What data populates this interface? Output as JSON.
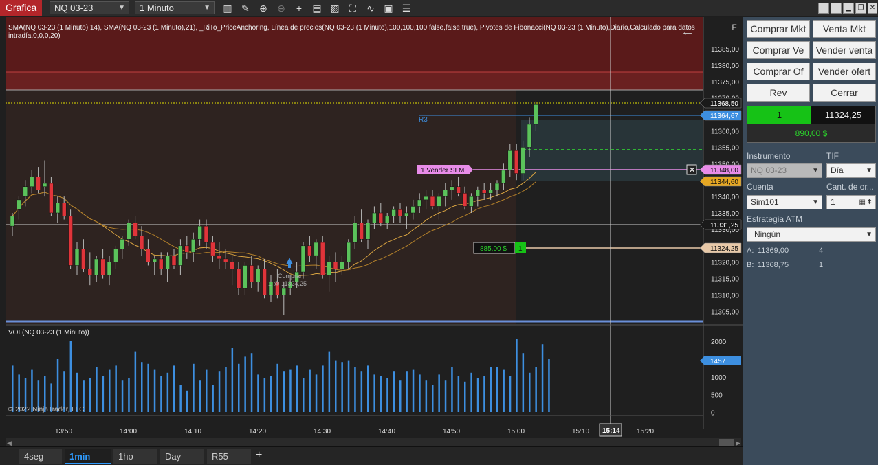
{
  "window": {
    "title": "Grafica",
    "instrument_select": "NQ 03-23",
    "interval_select": "1 Minuto",
    "toolbar_icons": [
      "bars-icon",
      "draw-icon",
      "zoom-in-icon",
      "zoom-out-icon",
      "crosshair-icon",
      "properties-icon",
      "strategies-icon",
      "data-box-icon",
      "indicators-icon",
      "alerts-icon",
      "orders-icon"
    ],
    "window_buttons": [
      "layout-icon",
      "layout-icon",
      "minimize-icon",
      "restore-icon",
      "close-icon"
    ]
  },
  "chart": {
    "indicators_text": "SMA(NQ 03-23 (1 Minuto),14), SMA(NQ 03-23 (1 Minuto),21), _RiTo_PriceAnchoring, Línea de precios(NQ 03-23 (1 Minuto),100,100,100,false,false,true), Pivotes de Fibonacci(NQ 03-23 (1 Minuto),Diario,Calculado para datos intradía,0,0,0,20)",
    "volume_label": "VOL(NQ 03-23 (1 Minuto))",
    "copyright": "© 2022 NinjaTrader, LLC",
    "f_button": "F",
    "price_ticks": [
      "11385,00",
      "11380,00",
      "11375,00",
      "11370,00",
      "11365,00",
      "11360,00",
      "11355,00",
      "11350,00",
      "11345,00",
      "11340,00",
      "11335,00",
      "11330,00",
      "11325,00",
      "11320,00",
      "11315,00",
      "11310,00",
      "11305,00"
    ],
    "price_markers": [
      {
        "label": "11368,50",
        "color": "#1a1a1a",
        "text": "#ffffff"
      },
      {
        "label": "11364,67",
        "color": "#3d8fe0",
        "text": "#ffffff"
      },
      {
        "label": "11348,00",
        "color": "#e88ce8",
        "text": "#111111"
      },
      {
        "label": "11344,60",
        "color": "#e6a723",
        "text": "#111111"
      },
      {
        "label": "11331,25",
        "color": "#1a1a1a",
        "text": "#ffffff"
      },
      {
        "label": "11324,25",
        "color": "#e8c9a8",
        "text": "#111111"
      }
    ],
    "volume_ticks": [
      "2000",
      "1500",
      "1000",
      "500",
      "0"
    ],
    "volume_marker": "1457",
    "time_ticks": [
      "13:50",
      "14:00",
      "14:10",
      "14:20",
      "14:30",
      "14:40",
      "14:50",
      "15:00",
      "15:10",
      "15:20"
    ],
    "crosshair_time": "15:14",
    "pivot_label": "R3",
    "order_label": "1  Vender SLM",
    "position_pnl": "885,00 $",
    "position_qty": "1",
    "buy_marker": "Comprar",
    "buy_marker_price": "1 @ 11324,25"
  },
  "bottom_tabs": [
    "4seg",
    "1min",
    "1ho",
    "Day",
    "R55"
  ],
  "active_tab": "1min",
  "panel": {
    "buttons": [
      "Comprar Mkt",
      "Venta Mkt",
      "Comprar Ve",
      "Vender venta",
      "Comprar Of",
      "Vender ofert",
      "Rev",
      "Cerrar"
    ],
    "position_qty": "1",
    "position_price": "11324,25",
    "position_pnl": "890,00 $",
    "instrument_label": "Instrumento",
    "instrument_value": "NQ 03-23",
    "tif_label": "TIF",
    "tif_value": "Día",
    "account_label": "Cuenta",
    "account_value": "Sim101",
    "qty_label": "Cant. de or...",
    "qty_value": "1",
    "atm_label": "Estrategia ATM",
    "atm_value": "Ningún",
    "ask_label": "A:",
    "ask_price": "11369,00",
    "ask_size": "4",
    "bid_label": "B:",
    "bid_price": "11368,75",
    "bid_size": "1"
  },
  "colors": {
    "up_candle": "#5bc25b",
    "down_candle": "#e0343a",
    "volume_bar": "#3d8fe0",
    "sma14": "#d9a441",
    "sma21": "#b3802a"
  }
}
